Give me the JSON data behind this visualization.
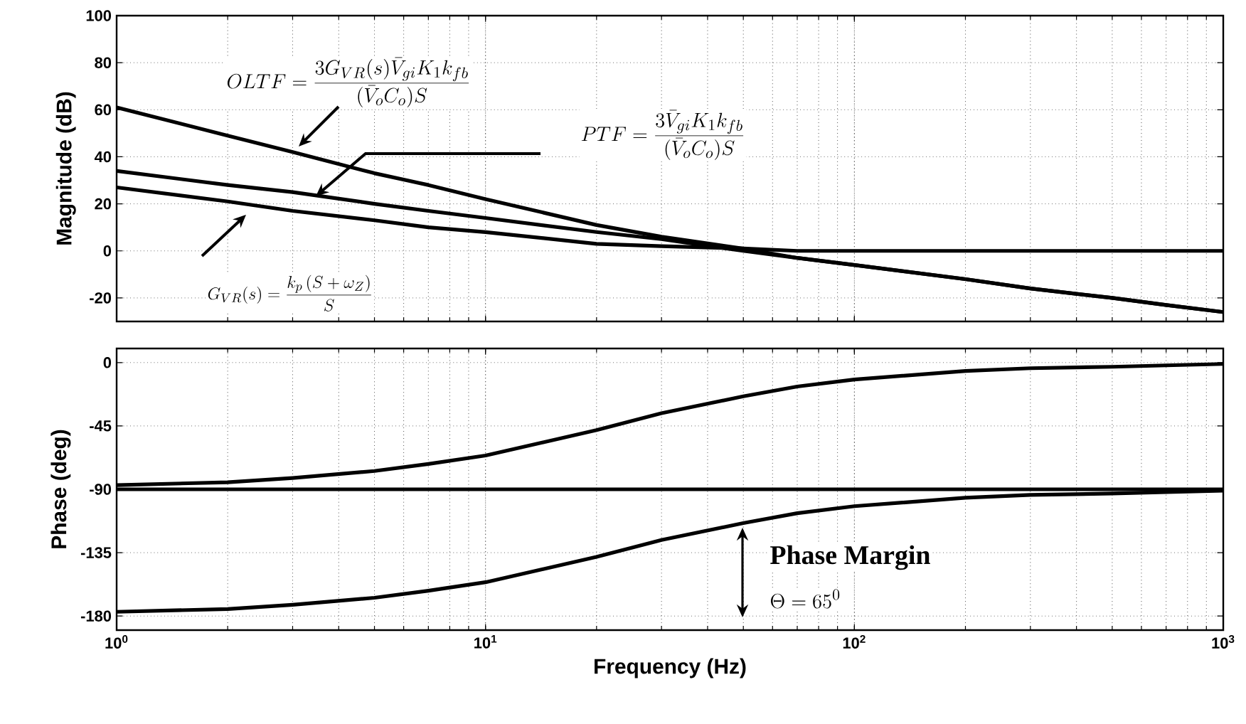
{
  "chart_data": [
    {
      "type": "line",
      "ylabel": "Magnitude (dB)",
      "log": "x",
      "grid": true,
      "tick_labels": "y",
      "xlim": [
        1,
        1000
      ],
      "ylim": [
        -30,
        100
      ],
      "xticks": [
        {
          "value": 1,
          "label": null
        },
        {
          "value": 10,
          "label": null
        },
        {
          "value": 100,
          "label": null
        },
        {
          "value": 1000,
          "label": null
        }
      ],
      "yticks": [
        -20,
        0,
        20,
        40,
        60,
        80,
        100
      ],
      "x": [
        1,
        2,
        3,
        5,
        7,
        10,
        20,
        30,
        50,
        70,
        100,
        200,
        300,
        500,
        700,
        1000
      ],
      "series": [
        {
          "color": "#000000",
          "values": [
            61,
            49,
            42,
            33,
            28,
            22,
            11,
            6,
            1,
            -3,
            -6,
            -12,
            -16,
            -20,
            -23,
            -26
          ]
        },
        {
          "color": "#000000",
          "values": [
            34,
            28,
            25,
            20,
            17,
            14,
            8,
            5,
            0,
            -3,
            -6,
            -12,
            -16,
            -20,
            -23,
            -26
          ]
        },
        {
          "color": "#000000",
          "values": [
            27,
            21,
            17,
            13,
            10,
            8,
            3,
            2,
            1,
            0,
            0,
            0,
            0,
            0,
            0,
            0
          ]
        }
      ],
      "annotations": [
        "OLTF=\\frac{3G_{VR}(s)\\bar{V}_{gi}K_1k_{fb}}{(\\bar{V}_oC_o)S}",
        "PTF=\\frac{3\\bar{V}_{gi}K_1k_{fb}}{(\\bar{V}_oC_o)S}",
        "G_{VR}(s)=\\frac{k_p\\left(S+\\omega_Z\\right)}{S}"
      ]
    },
    {
      "type": "line",
      "xlabel": "Frequency (Hz)",
      "ylabel": "Phase (deg)",
      "log": "x",
      "grid": true,
      "xlim": [
        1,
        1000
      ],
      "ylim": [
        -190,
        10
      ],
      "xticks": [
        {
          "value": 1,
          "label": "10$^{0}$"
        },
        {
          "value": 10,
          "label": "10$^{1}$"
        },
        {
          "value": 100,
          "label": "10$^{2}$"
        },
        {
          "value": 1000,
          "label": "10$^{3}$"
        }
      ],
      "yticks": [
        -180,
        -135,
        -90,
        -45,
        0
      ],
      "x": [
        1,
        2,
        3,
        5,
        7,
        10,
        20,
        30,
        50,
        70,
        100,
        200,
        300,
        500,
        700,
        1000
      ],
      "series": [
        {
          "color": "#000000",
          "values": [
            -87,
            -85,
            -82,
            -77,
            -72,
            -66,
            -48,
            -36,
            -24,
            -17,
            -12,
            -6,
            -4,
            -3,
            -2,
            -1
          ]
        },
        {
          "color": "#000000",
          "values": [
            -90,
            -90,
            -90,
            -90,
            -90,
            -90,
            -90,
            -90,
            -90,
            -90,
            -90,
            -90,
            -90,
            -90,
            -90,
            -90
          ]
        },
        {
          "color": "#000000",
          "values": [
            -177,
            -175,
            -172,
            -167,
            -162,
            -156,
            -138,
            -126,
            -114,
            -107,
            -102,
            -96,
            -94,
            -93,
            -92,
            -91
          ]
        }
      ],
      "annotations": [
        "Phase Margin",
        "\\Theta=65^{0}"
      ]
    }
  ]
}
